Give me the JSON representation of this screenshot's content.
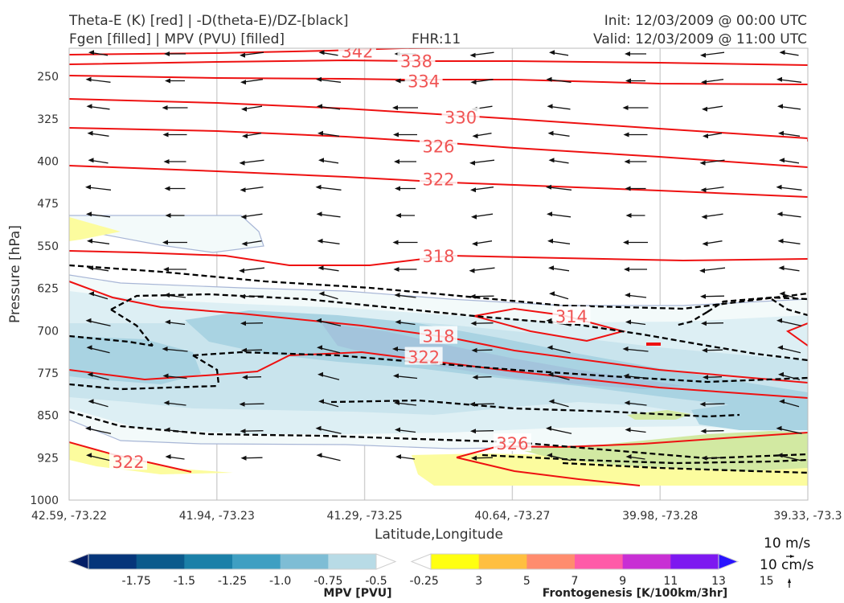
{
  "header": {
    "title_left_1": "Theta-E (K) [red] | -D(theta-E)/DZ-[black]",
    "title_left_2": "Fgen [filled] | MPV (PVU) [filled]",
    "fhr": "FHR:11",
    "init": "Init: 12/03/2009 @ 00:00 UTC",
    "valid": "Valid: 12/03/2009 @ 11:00 UTC"
  },
  "chart_data": {
    "type": "cross-section",
    "xlabel": "Latitude,Longitude",
    "ylabel": "Pressure [hPa]",
    "x_ticks": [
      "42.59, -73.22",
      "41.94, -73.23",
      "41.29, -73.25",
      "40.64, -73.27",
      "39.98, -73.28",
      "39.33, -73.3"
    ],
    "y_ticks": [
      250,
      325,
      400,
      475,
      550,
      625,
      700,
      775,
      850,
      925,
      1000
    ],
    "ylim": [
      1000,
      200
    ],
    "grid": true,
    "theta_e_labels": [
      {
        "text": "342",
        "x": 1.95,
        "p": 205
      },
      {
        "text": "338",
        "x": 2.35,
        "p": 222
      },
      {
        "text": "334",
        "x": 2.4,
        "p": 258
      },
      {
        "text": "330",
        "x": 2.65,
        "p": 322
      },
      {
        "text": "326",
        "x": 2.5,
        "p": 373
      },
      {
        "text": "322",
        "x": 2.5,
        "p": 431
      },
      {
        "text": "318",
        "x": 2.5,
        "p": 567
      },
      {
        "text": "314",
        "x": 3.4,
        "p": 674
      },
      {
        "text": "318",
        "x": 2.5,
        "p": 709
      },
      {
        "text": "322",
        "x": 2.4,
        "p": 746
      },
      {
        "text": "326",
        "x": 3.0,
        "p": 899
      },
      {
        "text": "322",
        "x": 0.4,
        "p": 932
      }
    ],
    "mpv_colorbar": {
      "label": "MPV [PVU]",
      "ticks": [
        "-1.75",
        "-1.5",
        "-1.25",
        "-1.0",
        "-0.75",
        "-0.5",
        "-0.25"
      ],
      "colors": [
        "#041e66",
        "#05357a",
        "#0b5a8c",
        "#1b80a8",
        "#3f9fc2",
        "#7ebdd5",
        "#b8dbe6",
        "#ffffff"
      ]
    },
    "fgen_colorbar": {
      "label": "Frontogenesis [K/100km/3hr]",
      "ticks": [
        "3",
        "5",
        "7",
        "9",
        "11",
        "13",
        "15"
      ],
      "colors": [
        "#ffffff",
        "#ffff11",
        "#ffbf40",
        "#ff8c6e",
        "#ff5aa8",
        "#c82fd4",
        "#7d18f0",
        "#2a14ff"
      ]
    },
    "colors": {
      "theta_e": "#ee1111",
      "dtheta_dz": "#000000",
      "wind": "#111111"
    }
  },
  "legend": {
    "speed_label": "10 m/s",
    "vertical_label": "10 cm/s"
  }
}
